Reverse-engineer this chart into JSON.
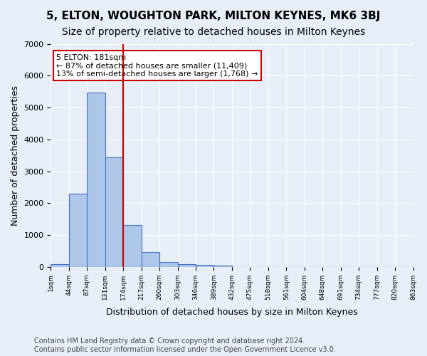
{
  "title1": "5, ELTON, WOUGHTON PARK, MILTON KEYNES, MK6 3BJ",
  "title2": "Size of property relative to detached houses in Milton Keynes",
  "xlabel": "Distribution of detached houses by size in Milton Keynes",
  "ylabel": "Number of detached properties",
  "bar_values": [
    75,
    2300,
    5480,
    3440,
    1310,
    470,
    160,
    85,
    55,
    35,
    0,
    0,
    0,
    0,
    0,
    0,
    0,
    0,
    0,
    0
  ],
  "bin_labels": [
    "1sqm",
    "44sqm",
    "87sqm",
    "131sqm",
    "174sqm",
    "217sqm",
    "260sqm",
    "303sqm",
    "346sqm",
    "389sqm",
    "432sqm",
    "475sqm",
    "518sqm",
    "561sqm",
    "604sqm",
    "648sqm",
    "691sqm",
    "734sqm",
    "777sqm",
    "820sqm",
    "863sqm"
  ],
  "bar_color": "#aec6e8",
  "bar_edge_color": "#4472c4",
  "bg_color": "#e8eef7",
  "grid_color": "#ffffff",
  "vline_x": 4,
  "vline_color": "#cc0000",
  "annotation_text": "5 ELTON: 181sqm\n← 87% of detached houses are smaller (11,409)\n13% of semi-detached houses are larger (1,768) →",
  "annotation_box_color": "#ffffff",
  "annotation_box_edge": "#cc0000",
  "ylim": [
    0,
    7000
  ],
  "yticks": [
    0,
    1000,
    2000,
    3000,
    4000,
    5000,
    6000,
    7000
  ],
  "footnote1": "Contains HM Land Registry data © Crown copyright and database right 2024.",
  "footnote2": "Contains public sector information licensed under the Open Government Licence v3.0.",
  "title1_fontsize": 11,
  "title2_fontsize": 10,
  "xlabel_fontsize": 9,
  "ylabel_fontsize": 9,
  "annotation_fontsize": 8,
  "footnote_fontsize": 7
}
